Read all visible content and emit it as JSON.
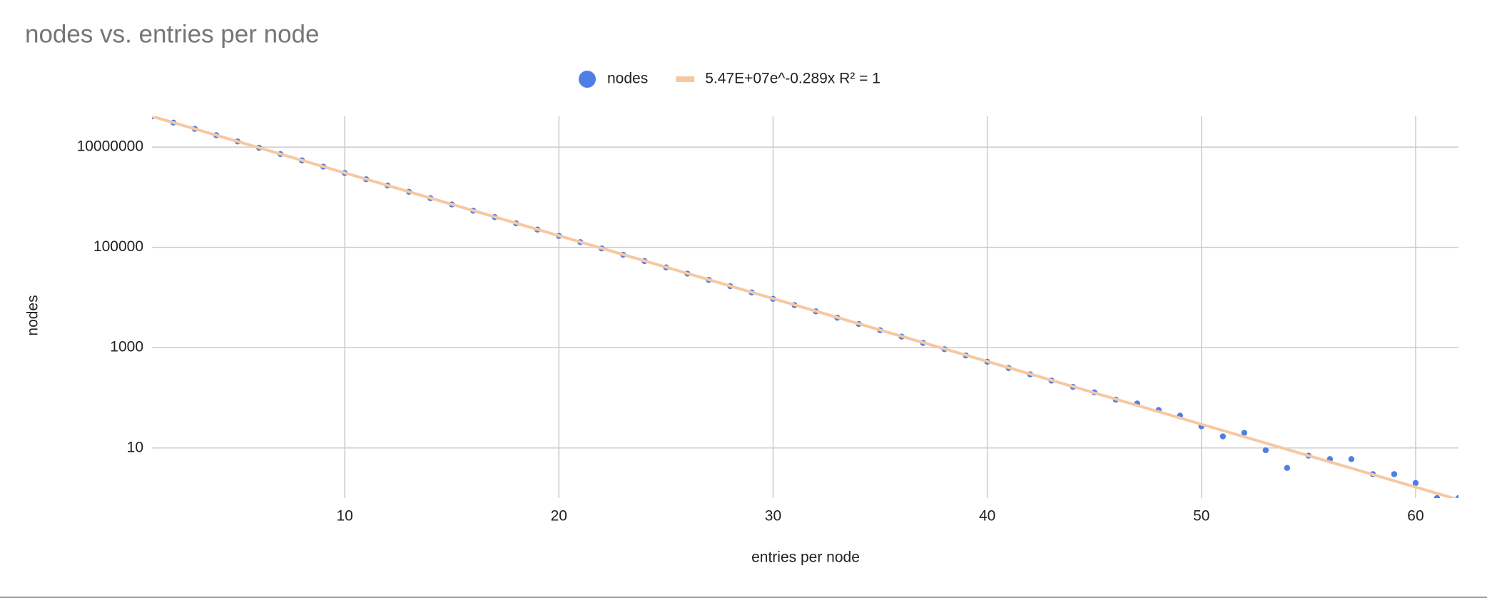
{
  "chart_data": {
    "type": "scatter",
    "title": "nodes vs. entries per node",
    "x_label": "entries per node",
    "y_label": "nodes",
    "log_y": true,
    "grid": true,
    "legend": "top",
    "xlim": [
      1,
      62
    ],
    "ylim": [
      1,
      41000000
    ],
    "xticks": [
      10,
      20,
      30,
      40,
      50,
      60
    ],
    "yticks": [
      10,
      1000,
      100000,
      10000000
    ],
    "series": [
      {
        "name": "nodes",
        "color": "#4e7fe6",
        "x": [
          1,
          2,
          3,
          4,
          5,
          6,
          7,
          8,
          9,
          10,
          11,
          12,
          13,
          14,
          15,
          16,
          17,
          18,
          19,
          20,
          21,
          22,
          23,
          24,
          25,
          26,
          27,
          28,
          29,
          30,
          31,
          32,
          33,
          34,
          35,
          36,
          37,
          38,
          39,
          40,
          41,
          42,
          43,
          44,
          45,
          46,
          47,
          48,
          49,
          50,
          51,
          52,
          53,
          54,
          55,
          56,
          57,
          58,
          59,
          60,
          61,
          62
        ],
        "values": [
          41000000,
          30700000,
          23000000,
          17200000,
          12900000,
          9660000,
          7240000,
          5420000,
          4060000,
          3040000,
          2280000,
          1710000,
          1280000,
          957000,
          717000,
          537000,
          402000,
          301000,
          226000,
          169000,
          127000,
          94900,
          71100,
          53200,
          39900,
          29900,
          22400,
          16800,
          12600,
          9400,
          7040,
          5280,
          3950,
          2960,
          2220,
          1660,
          1240,
          932,
          698,
          523,
          392,
          293,
          220,
          165,
          128,
          92,
          77,
          57,
          44,
          27,
          17,
          20,
          9,
          4,
          7,
          6,
          6,
          3,
          3,
          2,
          1,
          1
        ]
      },
      {
        "name": "5.47E+07e^-0.289x R² = 1",
        "color": "#f6c8a2",
        "type": "line",
        "x": [
          1,
          62
        ],
        "values": [
          41000000,
          0.93
        ]
      }
    ]
  }
}
